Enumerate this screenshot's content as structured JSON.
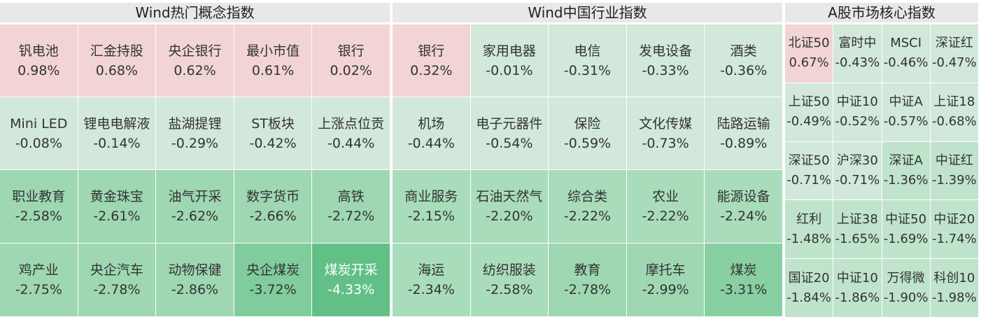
{
  "panels": [
    {
      "title": "Wind热门概念指数",
      "rows": [
        [
          {
            "name": "钒电池",
            "change": "0.98%",
            "color": "#f2d4d4"
          },
          {
            "name": "汇金持股",
            "change": "0.68%",
            "color": "#f2d4d4"
          },
          {
            "name": "央企银行",
            "change": "0.62%",
            "color": "#f2d4d4"
          },
          {
            "name": "最小市值",
            "change": "0.61%",
            "color": "#f2d4d4"
          },
          {
            "name": "银行",
            "change": "0.02%",
            "color": "#f2d4d4"
          }
        ],
        [
          {
            "name": "Mini LED",
            "change": "-0.08%",
            "color": "#d2e8da"
          },
          {
            "name": "锂电电解液",
            "change": "-0.14%",
            "color": "#d2e8da"
          },
          {
            "name": "盐湖提锂",
            "change": "-0.29%",
            "color": "#d2e8da"
          },
          {
            "name": "ST板块",
            "change": "-0.42%",
            "color": "#d2e8da"
          },
          {
            "name": "上涨点位贡",
            "change": "-0.44%",
            "color": "#d2e8da"
          }
        ],
        [
          {
            "name": "职业教育",
            "change": "-2.58%",
            "color": "#9ed7b2"
          },
          {
            "name": "黄金珠宝",
            "change": "-2.61%",
            "color": "#9ed7b2"
          },
          {
            "name": "油气开采",
            "change": "-2.62%",
            "color": "#9ed7b2"
          },
          {
            "name": "数字货币",
            "change": "-2.66%",
            "color": "#9ed7b2"
          },
          {
            "name": "高铁",
            "change": "-2.72%",
            "color": "#9ed7b2"
          }
        ],
        [
          {
            "name": "鸡产业",
            "change": "-2.75%",
            "color": "#9ed7b2"
          },
          {
            "name": "央企汽车",
            "change": "-2.78%",
            "color": "#9ed7b2"
          },
          {
            "name": "动物保健",
            "change": "-2.86%",
            "color": "#9ed7b2"
          },
          {
            "name": "央企煤炭",
            "change": "-3.72%",
            "color": "#80cc9c"
          },
          {
            "name": "煤炭开采",
            "change": "-4.33%",
            "color": "#62c087",
            "light": true
          }
        ]
      ]
    },
    {
      "title": "Wind中国行业指数",
      "rows": [
        [
          {
            "name": "银行",
            "change": "0.32%",
            "color": "#f2d4d4"
          },
          {
            "name": "家用电器",
            "change": "-0.01%",
            "color": "#d2e8da"
          },
          {
            "name": "电信",
            "change": "-0.31%",
            "color": "#d2e8da"
          },
          {
            "name": "发电设备",
            "change": "-0.33%",
            "color": "#d2e8da"
          },
          {
            "name": "酒类",
            "change": "-0.36%",
            "color": "#d2e8da"
          }
        ],
        [
          {
            "name": "机场",
            "change": "-0.44%",
            "color": "#d2e8da"
          },
          {
            "name": "电子元器件",
            "change": "-0.54%",
            "color": "#d2e8da"
          },
          {
            "name": "保险",
            "change": "-0.59%",
            "color": "#d2e8da"
          },
          {
            "name": "文化传媒",
            "change": "-0.73%",
            "color": "#d2e8da"
          },
          {
            "name": "陆路运输",
            "change": "-0.89%",
            "color": "#d2e8da"
          }
        ],
        [
          {
            "name": "商业服务",
            "change": "-2.15%",
            "color": "#a9dcbb"
          },
          {
            "name": "石油天然气",
            "change": "-2.20%",
            "color": "#a9dcbb"
          },
          {
            "name": "综合类",
            "change": "-2.22%",
            "color": "#a9dcbb"
          },
          {
            "name": "农业",
            "change": "-2.22%",
            "color": "#a9dcbb"
          },
          {
            "name": "能源设备",
            "change": "-2.24%",
            "color": "#a9dcbb"
          }
        ],
        [
          {
            "name": "海运",
            "change": "-2.34%",
            "color": "#a9dcbb"
          },
          {
            "name": "纺织服装",
            "change": "-2.58%",
            "color": "#a9dcbb"
          },
          {
            "name": "教育",
            "change": "-2.78%",
            "color": "#9ed7b2"
          },
          {
            "name": "摩托车",
            "change": "-2.99%",
            "color": "#9ed7b2"
          },
          {
            "name": "煤炭",
            "change": "-3.31%",
            "color": "#88cfa2"
          }
        ]
      ]
    },
    {
      "title": "A股市场核心指数",
      "rows": [
        [
          {
            "name": "北证50",
            "change": "0.67%",
            "color": "#f2d4d4"
          },
          {
            "name": "富时中",
            "change": "-0.43%",
            "color": "#d2e8da"
          },
          {
            "name": "MSCI",
            "change": "-0.46%",
            "color": "#d2e8da"
          },
          {
            "name": "深证红",
            "change": "-0.47%",
            "color": "#d2e8da"
          }
        ],
        [
          {
            "name": "上证50",
            "change": "-0.49%",
            "color": "#d2e8da"
          },
          {
            "name": "中证10",
            "change": "-0.52%",
            "color": "#d2e8da"
          },
          {
            "name": "中证A",
            "change": "-0.57%",
            "color": "#d2e8da"
          },
          {
            "name": "上证18",
            "change": "-0.68%",
            "color": "#d2e8da"
          }
        ],
        [
          {
            "name": "深证50",
            "change": "-0.71%",
            "color": "#d2e8da"
          },
          {
            "name": "沪深30",
            "change": "-0.71%",
            "color": "#d2e8da"
          },
          {
            "name": "深证A",
            "change": "-1.36%",
            "color": "#bfe3cb"
          },
          {
            "name": "中证红",
            "change": "-1.39%",
            "color": "#bfe3cb"
          }
        ],
        [
          {
            "name": "红利",
            "change": "-1.48%",
            "color": "#bfe3cb"
          },
          {
            "name": "上证38",
            "change": "-1.65%",
            "color": "#bfe3cb"
          },
          {
            "name": "中证50",
            "change": "-1.69%",
            "color": "#bfe3cb"
          },
          {
            "name": "中证20",
            "change": "-1.74%",
            "color": "#bfe3cb"
          }
        ],
        [
          {
            "name": "国证20",
            "change": "-1.84%",
            "color": "#bfe3cb"
          },
          {
            "name": "中证10",
            "change": "-1.86%",
            "color": "#bfe3cb"
          },
          {
            "name": "万得微",
            "change": "-1.90%",
            "color": "#bfe3cb"
          },
          {
            "name": "科创10",
            "change": "-1.98%",
            "color": "#bfe3cb"
          }
        ]
      ]
    }
  ]
}
